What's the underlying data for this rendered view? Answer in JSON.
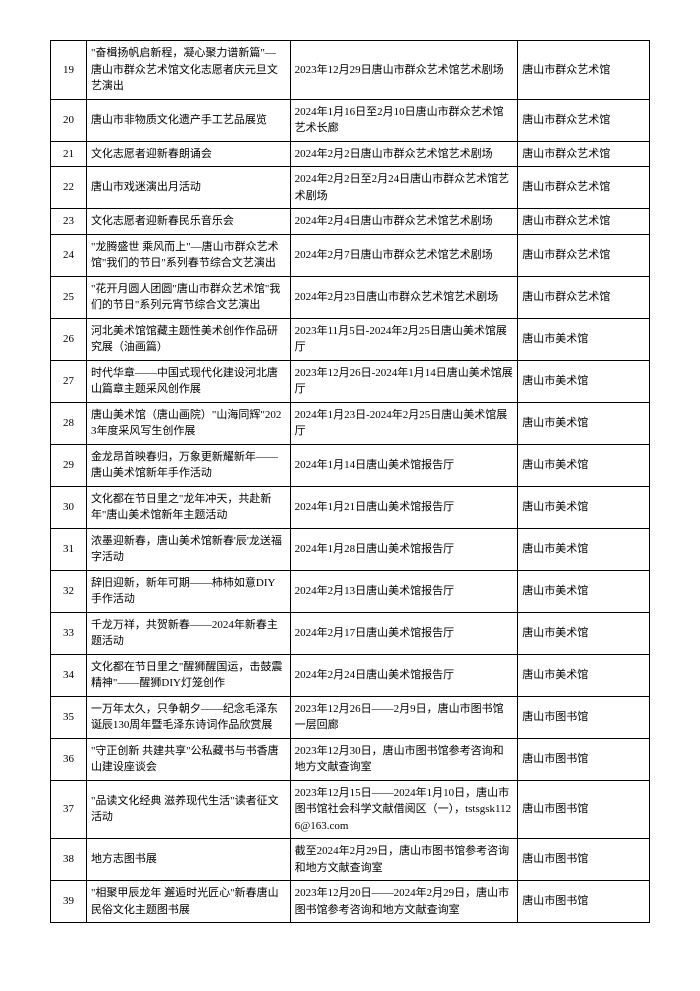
{
  "rows": [
    {
      "n": "19",
      "a": "\"奋楫扬帆启新程，凝心聚力谱新篇\"—唐山市群众艺术馆文化志愿者庆元旦文艺演出",
      "b": "2023年12月29日唐山市群众艺术馆艺术剧场",
      "c": "唐山市群众艺术馆"
    },
    {
      "n": "20",
      "a": "唐山市非物质文化遗产手工艺品展览",
      "b": "2024年1月16日至2月10日唐山市群众艺术馆艺术长廊",
      "c": "唐山市群众艺术馆"
    },
    {
      "n": "21",
      "a": "文化志愿者迎新春朗诵会",
      "b": "2024年2月2日唐山市群众艺术馆艺术剧场",
      "c": "唐山市群众艺术馆"
    },
    {
      "n": "22",
      "a": "唐山市戏迷演出月活动",
      "b": "2024年2月2日至2月24日唐山市群众艺术馆艺术剧场",
      "c": "唐山市群众艺术馆"
    },
    {
      "n": "23",
      "a": "文化志愿者迎新春民乐音乐会",
      "b": "2024年2月4日唐山市群众艺术馆艺术剧场",
      "c": "唐山市群众艺术馆"
    },
    {
      "n": "24",
      "a": "\"龙腾盛世 乘风而上\"—唐山市群众艺术馆\"我们的节日\"系列春节综合文艺演出",
      "b": "2024年2月7日唐山市群众艺术馆艺术剧场",
      "c": "唐山市群众艺术馆"
    },
    {
      "n": "25",
      "a": "\"花开月圆人团圆\"唐山市群众艺术馆\"我们的节日\"系列元宵节综合文艺演出",
      "b": "2024年2月23日唐山市群众艺术馆艺术剧场",
      "c": "唐山市群众艺术馆"
    },
    {
      "n": "26",
      "a": "河北美术馆馆藏主题性美术创作作品研究展（油画篇）",
      "b": "2023年11月5日-2024年2月25日唐山美术馆展厅",
      "c": "唐山市美术馆"
    },
    {
      "n": "27",
      "a": "时代华章——中国式现代化建设河北唐山篇章主题采风创作展",
      "b": "2023年12月26日-2024年1月14日唐山美术馆展厅",
      "c": "唐山市美术馆"
    },
    {
      "n": "28",
      "a": "唐山美术馆（唐山画院）\"山海同辉\"2023年度采风写生创作展",
      "b": "2024年1月23日-2024年2月25日唐山美术馆展厅",
      "c": "唐山市美术馆"
    },
    {
      "n": "29",
      "a": "金龙昂首映春归，万象更新耀新年——唐山美术馆新年手作活动",
      "b": "2024年1月14日唐山美术馆报告厅",
      "c": "唐山市美术馆"
    },
    {
      "n": "30",
      "a": "文化都在节日里之\"龙年冲天，共赴新年\"唐山美术馆新年主题活动",
      "b": "2024年1月21日唐山美术馆报告厅",
      "c": "唐山市美术馆"
    },
    {
      "n": "31",
      "a": "浓墨迎新春，唐山美术馆新春'辰'龙送福字活动",
      "b": "2024年1月28日唐山美术馆报告厅",
      "c": "唐山市美术馆"
    },
    {
      "n": "32",
      "a": "辞旧迎新，新年可期——柿柿如意DIY手作活动",
      "b": "2024年2月13日唐山美术馆报告厅",
      "c": "唐山市美术馆"
    },
    {
      "n": "33",
      "a": "千龙万祥，共贺新春——2024年新春主题活动",
      "b": "2024年2月17日唐山美术馆报告厅",
      "c": "唐山市美术馆"
    },
    {
      "n": "34",
      "a": "文化都在节日里之\"醒狮醒国运，击鼓震精神\"——醒狮DIY灯笼创作",
      "b": "2024年2月24日唐山美术馆报告厅",
      "c": "唐山市美术馆"
    },
    {
      "n": "35",
      "a": "一万年太久，只争朝夕——纪念毛泽东诞辰130周年暨毛泽东诗词作品欣赏展",
      "b": "2023年12月26日——2月9日，唐山市图书馆一层回廊",
      "c": "唐山市图书馆"
    },
    {
      "n": "36",
      "a": "\"守正创新 共建共享\"公私藏书与书香唐山建设座谈会",
      "b": "2023年12月30日，唐山市图书馆参考咨询和地方文献查询室",
      "c": "唐山市图书馆"
    },
    {
      "n": "37",
      "a": "\"品读文化经典 滋养现代生活\"读者征文活动",
      "b": "2023年12月15日——2024年1月10日，唐山市图书馆社会科学文献借阅区（一），tstsgsk1126@163.com",
      "c": "唐山市图书馆"
    },
    {
      "n": "38",
      "a": "地方志图书展",
      "b": "截至2024年2月29日，唐山市图书馆参考咨询和地方文献查询室",
      "c": "唐山市图书馆"
    },
    {
      "n": "39",
      "a": "\"相聚甲辰龙年 邂逅时光匠心\"新春唐山民俗文化主题图书展",
      "b": "2023年12月20日——2024年2月29日，唐山市图书馆参考咨询和地方文献查询室",
      "c": "唐山市图书馆"
    }
  ]
}
